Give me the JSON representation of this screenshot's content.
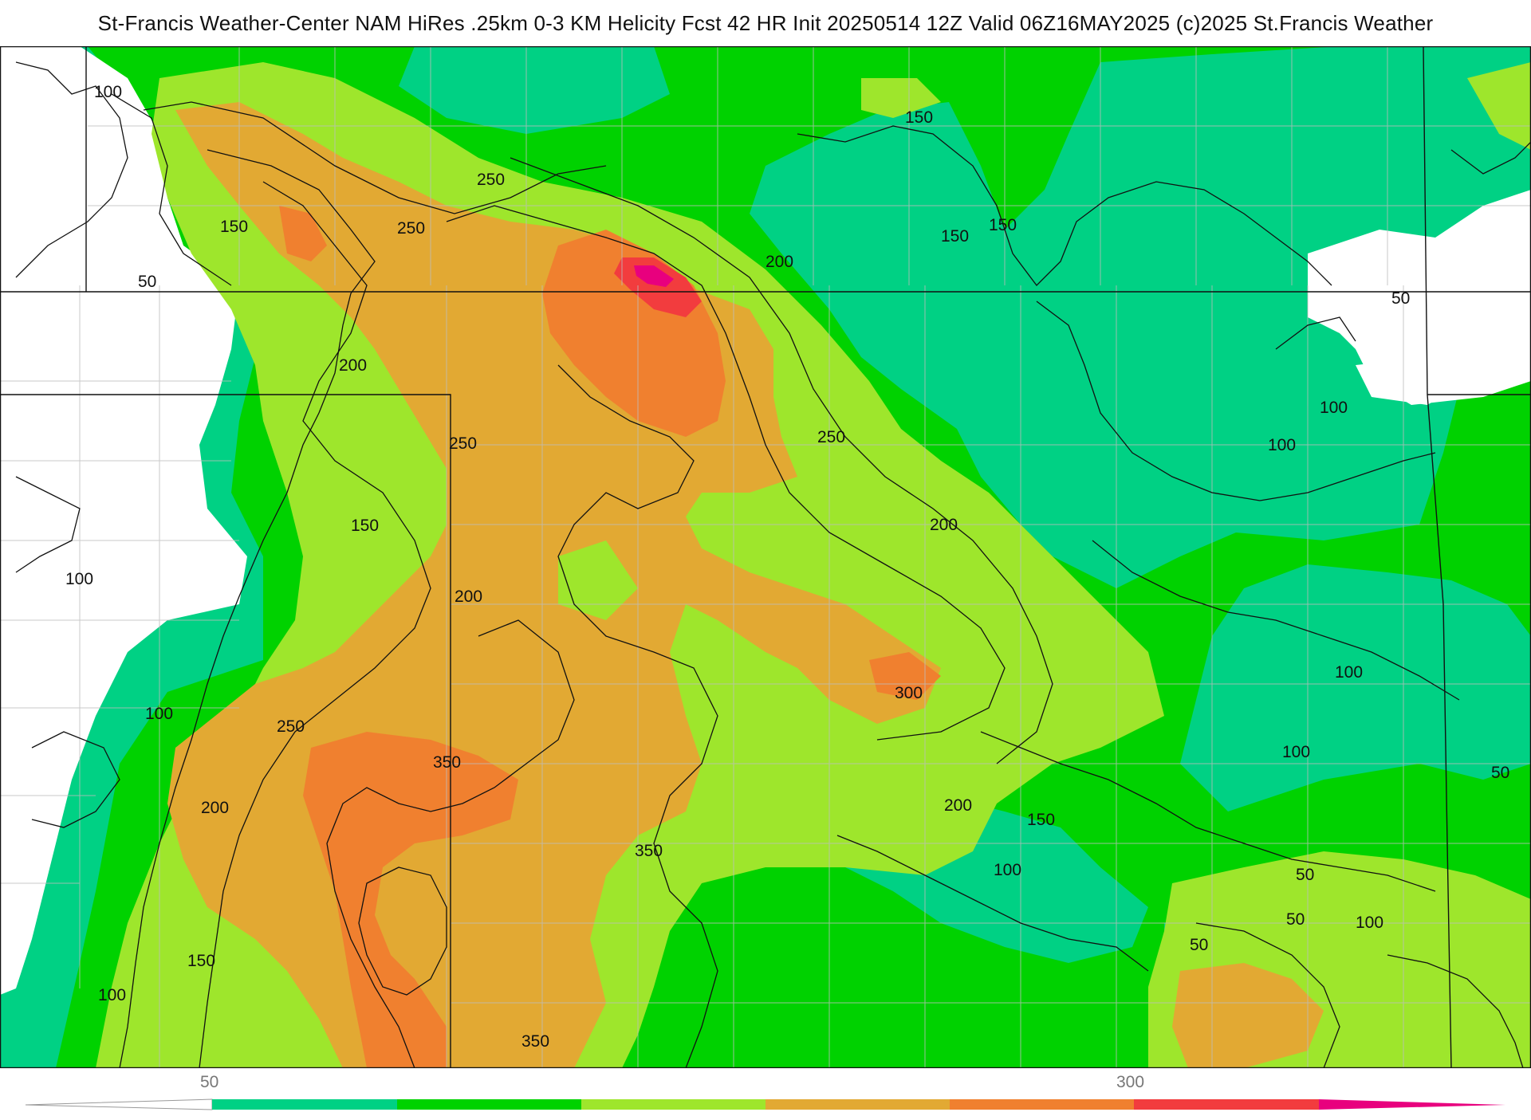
{
  "title": "St-Francis Weather-Center NAM HiRes .25km 0-3 KM Helicity Fcst 42 HR Init 20250514 12Z  Valid 06Z16MAY2025    (c)2025 St.Francis Weather",
  "colors": {
    "bg": "#ffffff",
    "lt50": "#ffffff",
    "band_50_100": "#00d184",
    "band_100_150": "#00d200",
    "band_150_200": "#9ee62c",
    "band_200_250": "#e2a933",
    "band_250_300": "#f0802f",
    "band_300_350": "#f23c3e",
    "band_350_400": "#e8007e",
    "contour": "#111111",
    "borders": "#111111",
    "counties": "#bdbdbd"
  },
  "contour_labels": [
    "100",
    "50",
    "150",
    "250",
    "250",
    "200",
    "250",
    "150",
    "200",
    "100",
    "100",
    "250",
    "200",
    "350",
    "350",
    "150",
    "100",
    "350",
    "250",
    "200",
    "300",
    "200",
    "150",
    "100",
    "150",
    "150",
    "150",
    "200",
    "50",
    "100",
    "100",
    "100",
    "100",
    "50",
    "50",
    "50",
    "50",
    "100"
  ],
  "legend": {
    "tick_labels": [
      "50",
      "300"
    ],
    "bins": [
      {
        "label": "<50",
        "color": "#ffffff"
      },
      {
        "label": "50-100",
        "color": "#00d184"
      },
      {
        "label": "100-150",
        "color": "#00d200"
      },
      {
        "label": "150-200",
        "color": "#9ee62c"
      },
      {
        "label": "200-250",
        "color": "#e2a933"
      },
      {
        "label": "250-300",
        "color": "#f0802f"
      },
      {
        "label": "300-350",
        "color": "#f23c3e"
      },
      {
        "label": ">350",
        "color": "#e8007e"
      }
    ]
  }
}
